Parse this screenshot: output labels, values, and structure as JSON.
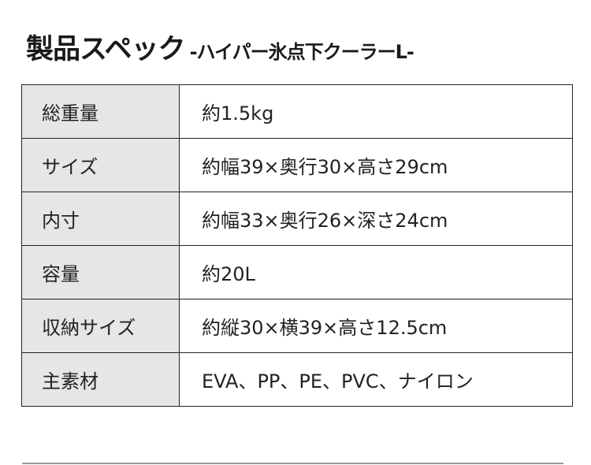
{
  "header": {
    "title": "製品スペック",
    "subtitle": "-ハイパー氷点下クーラーL-"
  },
  "specs": [
    {
      "label": "総重量",
      "value": "約1.5kg"
    },
    {
      "label": "サイズ",
      "value": "約幅39×奥行30×高さ29cm"
    },
    {
      "label": "内寸",
      "value": "約幅33×奥行26×深さ24cm"
    },
    {
      "label": "容量",
      "value": "約20L"
    },
    {
      "label": "収納サイズ",
      "value": "約縦30×横39×高さ12.5cm"
    },
    {
      "label": "主素材",
      "value": "EVA、PP、PE、PVC、ナイロン"
    }
  ]
}
